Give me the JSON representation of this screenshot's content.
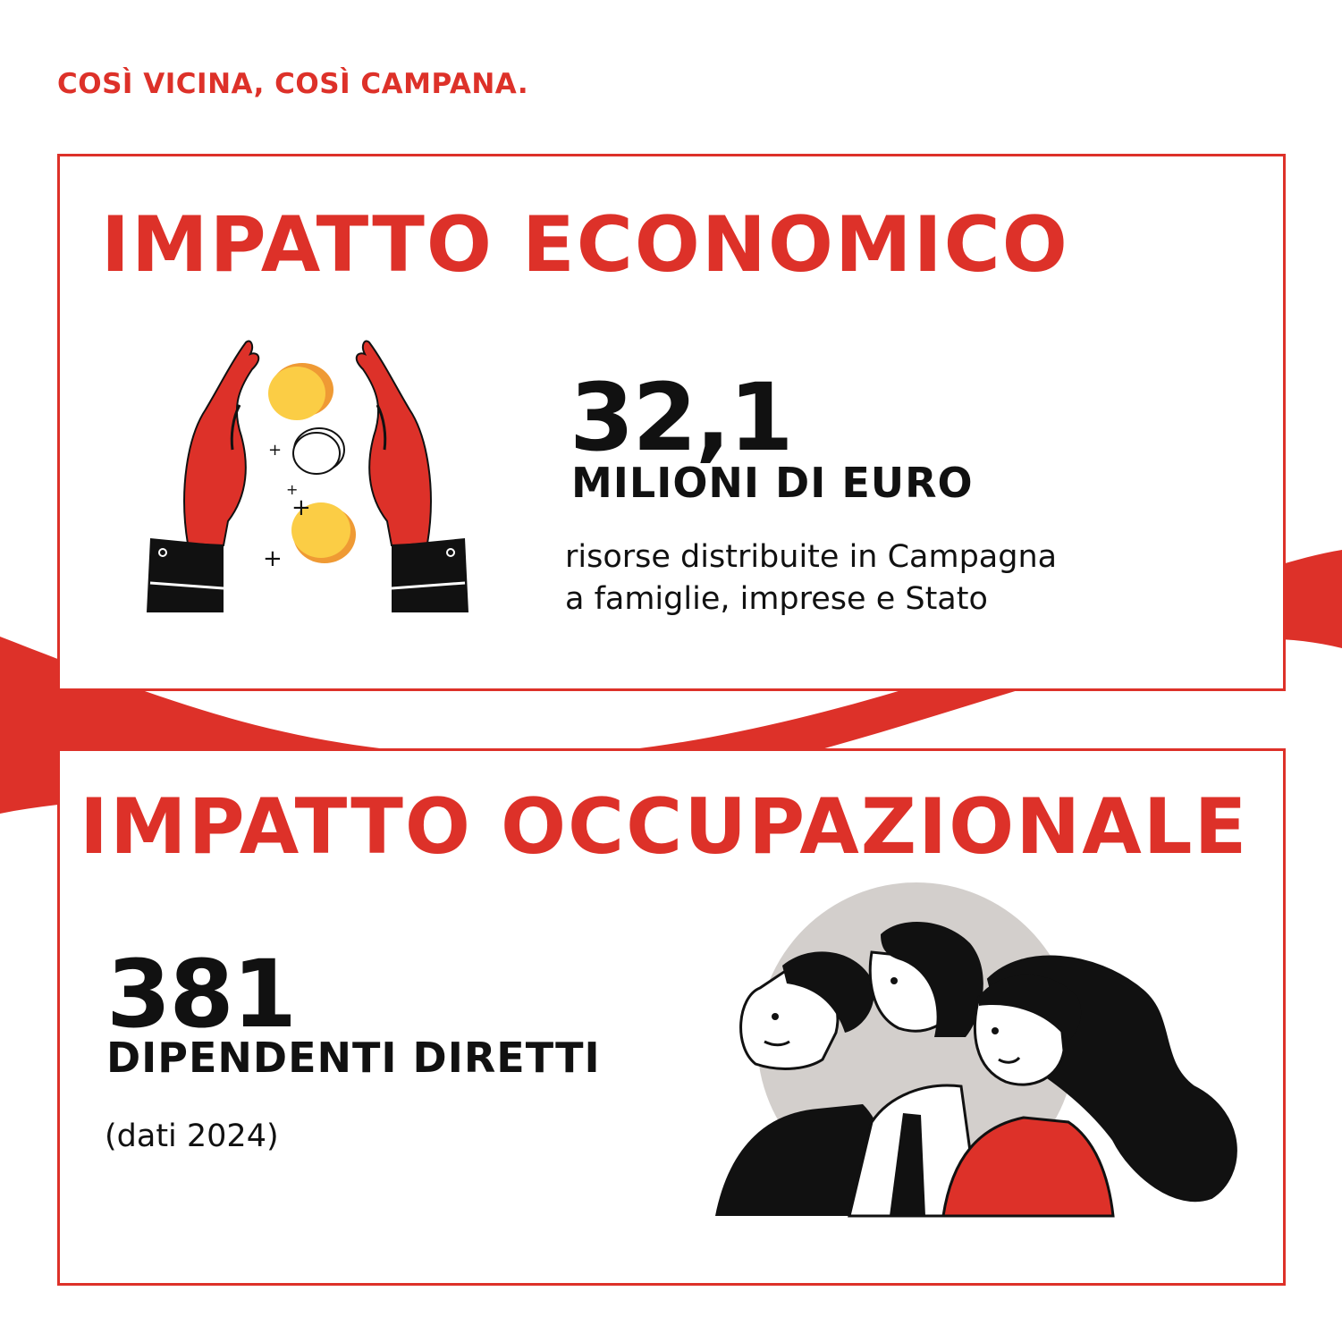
{
  "header": {
    "tagline": "COSÌ VICINA, COSÌ CAMPANA."
  },
  "colors": {
    "accent": "#dd3129",
    "text": "#111111",
    "coin": "#fbcd45",
    "coin_edge": "#ef9a34",
    "circle_bg": "#d3cfcc"
  },
  "economic": {
    "title": "IMPATTO ECONOMICO",
    "value": "32,1",
    "unit": "MILIONI DI EURO",
    "description_lines": [
      "risorse distribuite in Campagna",
      "a famiglie, imprese e Stato"
    ],
    "icon": "hands-coins-illustration"
  },
  "employment": {
    "title": "IMPATTO OCCUPAZIONALE",
    "value": "381",
    "unit": "DIPENDENTI DIRETTI",
    "note": "(dati 2024)",
    "icon": "people-group-illustration"
  }
}
